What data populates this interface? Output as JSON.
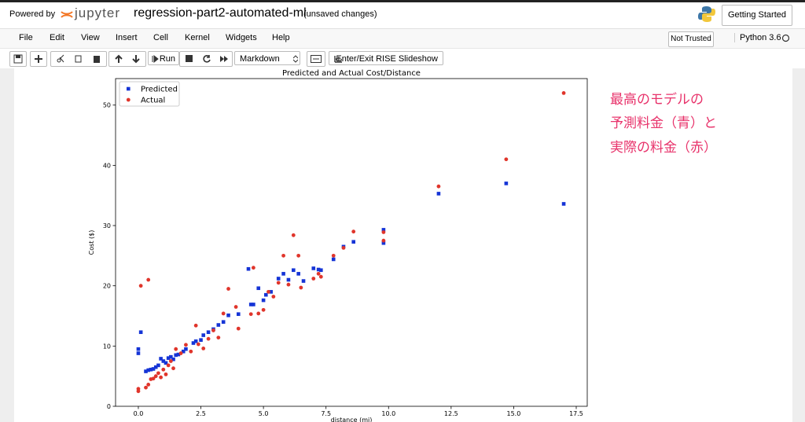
{
  "header": {
    "powered_by": "Powered by",
    "logo": "jupyter",
    "notebook_name": "regression-part2-automated-ml",
    "status": "(unsaved changes)",
    "getting_started": "Getting Started"
  },
  "menu": [
    "File",
    "Edit",
    "View",
    "Insert",
    "Cell",
    "Kernel",
    "Widgets",
    "Help"
  ],
  "trust": "Not Trusted",
  "kernel": "Python 3.6",
  "toolbar": {
    "run": "Run",
    "cell_type": "Markdown",
    "rise": "Enter/Exit RISE Slideshow"
  },
  "annotation": [
    "最高のモデルの",
    "予測料金（青）と",
    "実際の料金（赤）"
  ],
  "chart_data": {
    "type": "scatter",
    "title": "Predicted and Actual Cost/Distance",
    "x_label": "distance (mi)",
    "y_label": "Cost ($)",
    "xlim": [
      -0.91,
      17.94
    ],
    "ylim": [
      0,
      54.4
    ],
    "xticks": [
      {
        "value": 0,
        "label": "0.0"
      },
      2.5,
      {
        "value": 5,
        "label": "5.0"
      },
      7.5,
      {
        "value": 10,
        "label": "10.0"
      },
      12.5,
      {
        "value": 15,
        "label": "15.0"
      },
      17.5
    ],
    "yticks": [
      0,
      10,
      20,
      30,
      40,
      50
    ],
    "legend": "upper left",
    "series": [
      {
        "name": "Predicted",
        "color": "#1534d6",
        "marker": "square",
        "x": [
          0,
          0,
          0.1,
          0.3,
          0.4,
          0.5,
          0.6,
          0.7,
          0.8,
          0.9,
          1.0,
          1.1,
          1.2,
          1.3,
          1.4,
          1.5,
          1.6,
          1.8,
          1.9,
          2.2,
          2.3,
          2.5,
          2.6,
          2.8,
          3.0,
          3.2,
          3.4,
          3.6,
          4.0,
          4.4,
          4.5,
          4.6,
          4.8,
          5.0,
          5.1,
          5.3,
          5.6,
          5.8,
          6.0,
          6.2,
          6.4,
          6.6,
          7.0,
          7.2,
          7.3,
          7.8,
          8.2,
          8.6,
          9.8,
          9.8,
          12.0,
          14.7,
          17.0
        ],
        "values": [
          9.5,
          8.8,
          12.3,
          5.8,
          6,
          6.1,
          6.2,
          6.5,
          6.8,
          7.9,
          7.5,
          7.2,
          8,
          8.2,
          7.8,
          8.5,
          8.6,
          9.1,
          9.5,
          10.5,
          10.8,
          11,
          11.8,
          12.3,
          12.8,
          13.5,
          14,
          15.1,
          15.3,
          22.8,
          16.9,
          16.9,
          19.6,
          17.6,
          18.5,
          19,
          21.2,
          22,
          21,
          22.6,
          22,
          20.8,
          22.9,
          22.7,
          22.6,
          24.4,
          26.5,
          27.3,
          27.1,
          29.3,
          35.3,
          37,
          33.6
        ]
      },
      {
        "name": "Actual",
        "color": "#e0352b",
        "marker": "circle",
        "x": [
          0,
          0,
          0.1,
          0.4,
          0.3,
          0.4,
          0.5,
          0.6,
          0.7,
          0.8,
          0.9,
          1.0,
          1.1,
          1.2,
          1.3,
          1.4,
          1.5,
          1.7,
          1.9,
          2.1,
          2.3,
          2.4,
          2.6,
          2.8,
          3.0,
          3.2,
          3.4,
          3.6,
          3.9,
          4.0,
          4.5,
          4.6,
          4.8,
          5.0,
          5.2,
          5.4,
          5.6,
          5.8,
          6.0,
          6.2,
          6.4,
          6.5,
          7.0,
          7.2,
          7.3,
          7.8,
          8.2,
          8.6,
          9.8,
          9.8,
          12.0,
          14.7,
          17.0
        ],
        "values": [
          2.9,
          2.5,
          20,
          21,
          3.1,
          3.6,
          4.5,
          4.6,
          5,
          5.5,
          4.8,
          6.1,
          5.3,
          6.8,
          7.5,
          6.3,
          9.5,
          8.8,
          10.2,
          9.1,
          13.4,
          10.3,
          9.6,
          11.2,
          12.6,
          11.4,
          15.4,
          19.5,
          16.5,
          12.9,
          15.3,
          23,
          15.4,
          16,
          19,
          18.2,
          20.5,
          25,
          20.2,
          28.4,
          25,
          19.7,
          21.2,
          22,
          21.5,
          25,
          26.3,
          29,
          27.5,
          28.9,
          36.5,
          41,
          52
        ]
      }
    ]
  }
}
